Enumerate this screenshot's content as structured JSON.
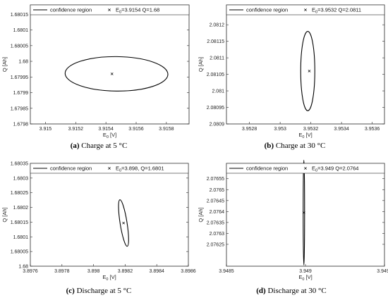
{
  "chart_data": [
    {
      "type": "scatter",
      "caption_id": "(a)",
      "caption_text": "Charge at 5 °C",
      "xlabel": "E_0 [V]",
      "ylabel": "Q [Ah]",
      "xlim": [
        3.9149,
        3.91595
      ],
      "ylim": [
        1.6798,
        1.68018
      ],
      "xticks": [
        3.915,
        3.9152,
        3.9154,
        3.9156,
        3.9158
      ],
      "xtick_labels": [
        "3.915",
        "3.9152",
        "3.9154",
        "3.9156",
        "3.9158"
      ],
      "yticks": [
        1.6798,
        1.67985,
        1.6799,
        1.67995,
        1.68,
        1.68005,
        1.6801,
        1.68015
      ],
      "ytick_labels": [
        "1.6798",
        "1.67985",
        "1.6799",
        "1.67995",
        "1.68",
        "1.68005",
        "1.6801",
        "1.68015"
      ],
      "legend_region": "confidence region",
      "legend_point": "E_0=3.9154 Q=1.68",
      "legend_placement": "top",
      "grid": false,
      "point": {
        "x": 3.91544,
        "y": 1.67996
      },
      "region": {
        "cx": 3.91547,
        "cy": 1.67996,
        "rx": 0.00034,
        "ry": 5.5e-05,
        "tilt_deg": 0.6
      }
    },
    {
      "type": "scatter",
      "caption_id": "(b)",
      "caption_text": "Charge at 30 °C",
      "xlabel": "E_0 [V]",
      "ylabel": "Q [Ah]",
      "xlim": [
        3.95265,
        3.95368
      ],
      "ylim": [
        2.0809,
        2.08126
      ],
      "xticks": [
        3.9528,
        3.953,
        3.9532,
        3.9534,
        3.9536
      ],
      "xtick_labels": [
        "3.9528",
        "3.953",
        "3.9532",
        "3.9534",
        "3.9536"
      ],
      "yticks": [
        2.0809,
        2.08095,
        2.081,
        2.08105,
        2.0811,
        2.08115,
        2.0812
      ],
      "ytick_labels": [
        "2.0809",
        "2.08095",
        "2.081",
        "2.08105",
        "2.0811",
        "2.08115",
        "2.0812"
      ],
      "legend_region": "confidence region",
      "legend_point": "E_0=3.9532 Q=2.0811",
      "legend_placement": "top",
      "grid": false,
      "point": {
        "x": 3.95319,
        "y": 2.08106
      },
      "region": {
        "cx": 3.95318,
        "cy": 2.08106,
        "rx": 4.6e-05,
        "ry": 0.00012,
        "tilt_deg": 0
      }
    },
    {
      "type": "scatter",
      "caption_id": "(c)",
      "caption_text": "Discharge at 5 °C",
      "xlabel": "E_0 [V]",
      "ylabel": "Q [Ah]",
      "xlim": [
        3.8976,
        3.8986
      ],
      "ylim": [
        1.68,
        1.68035
      ],
      "xticks": [
        3.8976,
        3.8978,
        3.898,
        3.8982,
        3.8984,
        3.8986
      ],
      "xtick_labels": [
        "3.8976",
        "3.8978",
        "3.898",
        "3.8982",
        "3.8984",
        "3.8986"
      ],
      "yticks": [
        1.68,
        1.68005,
        1.6801,
        1.68015,
        1.6802,
        1.68025,
        1.6803,
        1.68035
      ],
      "ytick_labels": [
        "1.68",
        "1.68005",
        "1.6801",
        "1.68015",
        "1.6802",
        "1.68025",
        "1.6803",
        "1.68035"
      ],
      "legend_region": "confidence region",
      "legend_point": "E_0=3.898, Q=1.6801",
      "legend_placement": "top",
      "grid": false,
      "point": {
        "x": 3.89819,
        "y": 1.680147
      },
      "region": {
        "cx": 3.89819,
        "cy": 1.680147,
        "rx": 2.2e-05,
        "ry": 8e-05,
        "tilt_deg": -9
      }
    },
    {
      "type": "scatter",
      "caption_id": "(d)",
      "caption_text": "Discharge at 30 °C",
      "xlabel": "E_0 [V]",
      "ylabel": "Q [Ah]",
      "xlim": [
        3.9485,
        3.9495
      ],
      "ylim": [
        2.07615,
        2.07662
      ],
      "xticks": [
        3.9485,
        3.949,
        3.9495
      ],
      "xtick_labels": [
        "3.9485",
        "3.949",
        "3.9495"
      ],
      "yticks": [
        2.07625,
        2.0763,
        2.07635,
        2.0764,
        2.07645,
        2.0765,
        2.07655
      ],
      "ytick_labels": [
        "2.07625",
        "2.0763",
        "2.07635",
        "2.0764",
        "2.07645",
        "2.0765",
        "2.07655"
      ],
      "legend_region": "confidence region",
      "legend_point": "E_0=3.949 Q=2.0764",
      "legend_placement": "top",
      "grid": false,
      "point": {
        "x": 3.94899,
        "y": 2.076395
      },
      "region": {
        "cx": 3.94899,
        "cy": 2.076395,
        "rx": 4.5e-06,
        "ry": 0.00024,
        "tilt_deg": 0
      }
    }
  ]
}
